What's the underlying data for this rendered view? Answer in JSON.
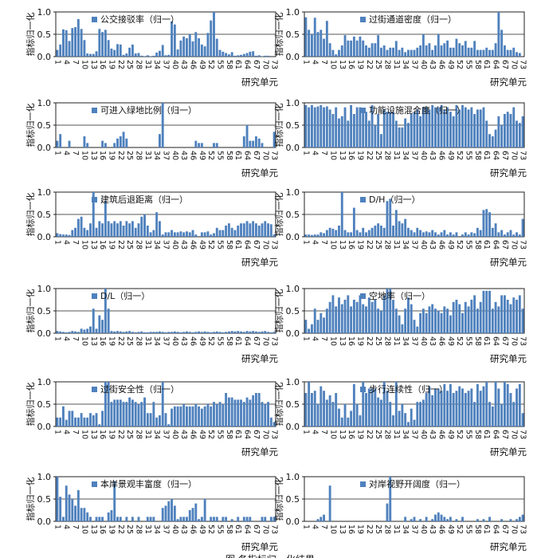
{
  "figure": {
    "caption": "图 各指标归一化结果"
  },
  "chart_data": [
    {
      "type": "bar",
      "title": "公交接驳率（归一）",
      "xlabel": "研究单元",
      "ylabel": "指标归一化",
      "ylim": [
        0,
        1
      ],
      "yticks": [
        "0.0",
        "0.5",
        "1.0"
      ],
      "xticks": [
        "1",
        "4",
        "7",
        "10",
        "13",
        "16",
        "19",
        "22",
        "25",
        "28",
        "31",
        "34",
        "37",
        "40",
        "43",
        "46",
        "49",
        "52",
        "55",
        "58",
        "61",
        "64",
        "67",
        "70",
        "73"
      ],
      "values": [
        0.15,
        0.27,
        0.61,
        0.59,
        0.35,
        0.64,
        0.66,
        0.84,
        0.62,
        0.37,
        0.07,
        0.06,
        0.06,
        0.12,
        0.62,
        0.55,
        0.6,
        0.37,
        0.18,
        0.15,
        0.28,
        0.27,
        0.04,
        0.07,
        0.2,
        0.27,
        0.07,
        0.08,
        0.02,
        0.01,
        0.03,
        0.01,
        0.02,
        0.09,
        0.13,
        0.26,
        0.03,
        0.04,
        0.79,
        0.72,
        0.16,
        0.36,
        0.45,
        0.41,
        0.5,
        0.34,
        0.55,
        0.41,
        0.27,
        0.23,
        0.53,
        0.81,
        1.0,
        0.4,
        0.15,
        0.11,
        0.08,
        0.05,
        0.1,
        0.02,
        0.03,
        0.04,
        0.06,
        0.08,
        0.11,
        0.12,
        0.02,
        0.03,
        0.01,
        0.02,
        0.02,
        0.0,
        0.0
      ]
    },
    {
      "type": "bar",
      "title": "过街通道密度（归一）",
      "xlabel": "研究单元",
      "ylabel": "指标归一化",
      "ylim": [
        0,
        1
      ],
      "yticks": [
        "0.0",
        "0.5",
        "1.0"
      ],
      "xticks": [
        "1",
        "4",
        "7",
        "10",
        "13",
        "16",
        "19",
        "22",
        "25",
        "28",
        "31",
        "34",
        "37",
        "40",
        "43",
        "46",
        "49",
        "52",
        "55",
        "58",
        "61",
        "64",
        "67",
        "70",
        "73"
      ],
      "values": [
        0.88,
        0.6,
        0.5,
        0.87,
        0.55,
        0.6,
        0.4,
        0.8,
        0.3,
        0.15,
        0.05,
        0.15,
        0.25,
        0.48,
        0.36,
        0.36,
        0.45,
        0.36,
        0.45,
        0.36,
        0.25,
        0.2,
        0.3,
        0.3,
        0.48,
        0.2,
        0.25,
        0.15,
        0.2,
        0.2,
        0.35,
        0.15,
        0.2,
        0.1,
        0.15,
        0.15,
        0.15,
        0.2,
        0.25,
        0.5,
        0.25,
        0.3,
        0.15,
        0.25,
        0.5,
        0.25,
        0.3,
        0.36,
        0.2,
        0.2,
        0.4,
        0.3,
        0.25,
        0.35,
        0.2,
        0.2,
        0.35,
        0.15,
        0.15,
        0.15,
        0.2,
        0.15,
        0.15,
        0.3,
        1.0,
        0.6,
        0.25,
        0.15,
        0.15,
        0.2,
        0.1,
        0.08,
        0.0
      ]
    },
    {
      "type": "bar",
      "title": "可进入绿地比例（归一）",
      "xlabel": "研究单元",
      "ylabel": "指标归一化",
      "ylim": [
        0,
        1
      ],
      "yticks": [
        "0.0",
        "0.5",
        "1.0"
      ],
      "xticks": [
        "1",
        "4",
        "7",
        "10",
        "13",
        "16",
        "19",
        "22",
        "25",
        "28",
        "31",
        "34",
        "37",
        "40",
        "43",
        "46",
        "49",
        "52",
        "55",
        "58",
        "61",
        "64",
        "67",
        "70",
        "73"
      ],
      "values": [
        0.15,
        0.3,
        0.0,
        0.0,
        0.15,
        0.0,
        0.0,
        0.0,
        0.0,
        0.25,
        0.1,
        0.0,
        0.0,
        0.0,
        0.0,
        0.15,
        0.1,
        0.0,
        0.0,
        0.1,
        0.2,
        0.25,
        0.35,
        0.2,
        0.0,
        0.0,
        0.0,
        0.0,
        0.0,
        0.0,
        0.0,
        0.0,
        0.0,
        0.0,
        0.3,
        1.0,
        0.0,
        0.0,
        0.0,
        0.0,
        0.0,
        0.0,
        0.0,
        0.0,
        0.0,
        0.0,
        0.15,
        0.1,
        0.1,
        0.0,
        0.0,
        0.0,
        0.1,
        0.1,
        0.0,
        0.0,
        0.0,
        0.0,
        0.0,
        0.0,
        0.0,
        0.0,
        0.25,
        0.5,
        0.15,
        0.15,
        0.25,
        0.2,
        0.1,
        0.0,
        0.0,
        0.0,
        0.35
      ]
    },
    {
      "type": "bar",
      "title": "功能设施混合度（归一）",
      "xlabel": "研究单元",
      "ylabel": "指标归一化",
      "ylim": [
        0,
        1
      ],
      "yticks": [
        "0.0",
        "0.5",
        "1.0"
      ],
      "xticks": [
        "1",
        "4",
        "7",
        "10",
        "13",
        "16",
        "19",
        "22",
        "25",
        "28",
        "31",
        "34",
        "37",
        "40",
        "43",
        "46",
        "49",
        "52",
        "55",
        "58",
        "61",
        "64",
        "67",
        "70",
        "73"
      ],
      "values": [
        0.95,
        0.9,
        0.95,
        0.9,
        0.92,
        0.95,
        0.9,
        0.92,
        0.85,
        0.75,
        0.9,
        0.65,
        0.7,
        0.9,
        0.6,
        0.95,
        0.75,
        0.9,
        0.9,
        0.85,
        0.8,
        0.6,
        0.95,
        0.5,
        0.75,
        0.3,
        0.85,
        0.8,
        0.8,
        0.8,
        0.6,
        0.45,
        0.45,
        0.65,
        0.55,
        0.75,
        0.8,
        0.85,
        0.7,
        0.9,
        0.9,
        0.85,
        0.95,
        0.9,
        0.9,
        0.95,
        0.85,
        0.9,
        0.8,
        0.7,
        0.95,
        0.85,
        0.95,
        0.9,
        0.85,
        0.9,
        0.75,
        0.85,
        0.85,
        0.9,
        0.6,
        0.3,
        0.25,
        0.4,
        0.7,
        0.5,
        0.75,
        0.8,
        0.75,
        0.9,
        0.6,
        0.55,
        0.7
      ]
    },
    {
      "type": "bar",
      "title": "建筑后退距离（归一）",
      "xlabel": "研究单元",
      "ylabel": "指标归一化",
      "ylim": [
        0,
        1
      ],
      "yticks": [
        "0.0",
        "0.5",
        "1.0"
      ],
      "xticks": [
        "1",
        "4",
        "7",
        "10",
        "13",
        "16",
        "19",
        "22",
        "25",
        "28",
        "31",
        "34",
        "37",
        "40",
        "43",
        "46",
        "49",
        "52",
        "55",
        "58",
        "61",
        "64",
        "67",
        "70",
        "73"
      ],
      "values": [
        0.08,
        0.06,
        0.05,
        0.05,
        0.04,
        0.15,
        0.2,
        0.4,
        0.45,
        0.2,
        0.15,
        0.3,
        1.0,
        0.2,
        0.35,
        0.3,
        0.8,
        0.35,
        0.3,
        0.35,
        0.3,
        0.35,
        0.25,
        0.35,
        0.3,
        0.35,
        0.2,
        0.3,
        0.45,
        0.5,
        0.25,
        0.1,
        0.15,
        0.55,
        0.35,
        0.05,
        0.1,
        0.1,
        0.15,
        0.1,
        0.1,
        0.12,
        0.1,
        0.12,
        0.1,
        0.15,
        0.05,
        0.0,
        0.1,
        0.1,
        0.12,
        0.05,
        0.08,
        0.2,
        0.15,
        0.15,
        0.25,
        0.3,
        0.2,
        0.15,
        0.25,
        0.3,
        0.3,
        0.35,
        0.3,
        0.35,
        0.3,
        0.25,
        0.3,
        0.35,
        0.3,
        0.28,
        0.05
      ]
    },
    {
      "type": "bar",
      "title": "D/H（归一）",
      "xlabel": "研究单元",
      "ylabel": "指标归一化",
      "ylim": [
        0,
        1
      ],
      "yticks": [
        "0.0",
        "0.5",
        "1.0"
      ],
      "xticks": [
        "1",
        "4",
        "7",
        "10",
        "13",
        "16",
        "19",
        "22",
        "25",
        "28",
        "31",
        "34",
        "37",
        "40",
        "43",
        "46",
        "49",
        "52",
        "55",
        "58",
        "61",
        "64",
        "67",
        "70",
        "73"
      ],
      "values": [
        0.05,
        0.05,
        0.04,
        0.05,
        0.05,
        0.1,
        0.08,
        0.15,
        0.2,
        0.18,
        0.15,
        0.25,
        1.0,
        0.15,
        0.1,
        0.1,
        0.65,
        0.15,
        0.1,
        0.2,
        0.1,
        0.15,
        0.2,
        0.25,
        0.3,
        0.25,
        0.2,
        0.8,
        0.85,
        0.25,
        0.6,
        0.35,
        0.3,
        0.4,
        0.2,
        0.15,
        0.1,
        0.2,
        0.15,
        0.1,
        0.12,
        0.1,
        0.15,
        0.1,
        0.05,
        0.1,
        0.15,
        0.05,
        0.1,
        0.05,
        0.1,
        0.0,
        0.05,
        0.1,
        0.05,
        0.1,
        0.08,
        0.2,
        0.15,
        0.6,
        0.62,
        0.55,
        0.2,
        0.3,
        0.1,
        0.15,
        0.05,
        0.1,
        0.15,
        0.05,
        0.1,
        0.05,
        0.4
      ]
    },
    {
      "type": "bar",
      "title": "D/L（归一）",
      "xlabel": "研究单元",
      "ylabel": "指标归一化",
      "ylim": [
        0,
        1
      ],
      "yticks": [
        "0.0",
        "0.5",
        "1.0"
      ],
      "xticks": [
        "1",
        "4",
        "7",
        "10",
        "13",
        "16",
        "19",
        "22",
        "25",
        "28",
        "31",
        "34",
        "37",
        "40",
        "43",
        "46",
        "49",
        "52",
        "55",
        "58",
        "61",
        "64",
        "67",
        "70",
        "73"
      ],
      "values": [
        0.05,
        0.04,
        0.03,
        0.02,
        0.03,
        0.05,
        0.04,
        0.03,
        0.1,
        0.08,
        0.1,
        0.15,
        0.55,
        0.1,
        0.4,
        0.3,
        1.0,
        0.55,
        0.05,
        0.04,
        0.05,
        0.04,
        0.03,
        0.04,
        0.05,
        0.03,
        0.02,
        0.03,
        0.04,
        0.02,
        0.02,
        0.03,
        0.03,
        0.03,
        0.04,
        0.03,
        0.02,
        0.03,
        0.03,
        0.04,
        0.03,
        0.02,
        0.03,
        0.04,
        0.03,
        0.02,
        0.03,
        0.04,
        0.03,
        0.04,
        0.03,
        0.02,
        0.03,
        0.04,
        0.03,
        0.02,
        0.03,
        0.04,
        0.05,
        0.04,
        0.05,
        0.04,
        0.03,
        0.05,
        0.04,
        0.05,
        0.04,
        0.03,
        0.04,
        0.05,
        0.03,
        0.02,
        0.03
      ]
    },
    {
      "type": "bar",
      "title": "空地率（归一）",
      "xlabel": "研究单元",
      "ylabel": "指标归一化",
      "ylim": [
        0,
        1
      ],
      "yticks": [
        "0.0",
        "0.5",
        "1.0"
      ],
      "xticks": [
        "1",
        "4",
        "7",
        "10",
        "13",
        "16",
        "19",
        "22",
        "25",
        "28",
        "31",
        "34",
        "37",
        "40",
        "43",
        "46",
        "49",
        "52",
        "55",
        "58",
        "61",
        "64",
        "67",
        "70",
        "73"
      ],
      "values": [
        0.3,
        0.1,
        0.2,
        0.55,
        0.3,
        0.45,
        0.35,
        0.55,
        0.7,
        0.85,
        0.6,
        0.8,
        0.65,
        0.75,
        0.85,
        0.6,
        0.75,
        0.7,
        0.85,
        0.65,
        0.6,
        0.8,
        0.7,
        0.75,
        0.55,
        0.5,
        0.85,
        1.0,
        1.0,
        0.75,
        0.55,
        0.4,
        0.2,
        0.55,
        0.8,
        0.65,
        0.3,
        0.15,
        0.45,
        0.55,
        0.45,
        0.6,
        0.65,
        0.55,
        0.5,
        0.45,
        0.6,
        0.55,
        0.4,
        0.7,
        0.75,
        0.65,
        0.45,
        0.7,
        0.6,
        0.75,
        0.85,
        0.55,
        0.7,
        0.95,
        0.95,
        0.95,
        0.55,
        0.7,
        0.6,
        0.85,
        0.85,
        0.75,
        0.65,
        0.8,
        0.75,
        0.85,
        0.55
      ]
    },
    {
      "type": "bar",
      "title": "过街安全性（归一）",
      "xlabel": "研究单元",
      "ylabel": "指标归一化",
      "ylim": [
        0,
        1
      ],
      "yticks": [
        "0.0",
        "0.5",
        "1.0"
      ],
      "xticks": [
        "1",
        "4",
        "7",
        "10",
        "13",
        "16",
        "19",
        "22",
        "25",
        "28",
        "31",
        "34",
        "37",
        "40",
        "43",
        "46",
        "49",
        "52",
        "55",
        "58",
        "61",
        "64",
        "67",
        "70",
        "73"
      ],
      "values": [
        0.2,
        0.2,
        0.45,
        0.15,
        0.35,
        0.35,
        0.2,
        0.2,
        0.3,
        0.2,
        0.2,
        0.3,
        0.25,
        0.3,
        0.05,
        0.35,
        1.0,
        1.0,
        0.55,
        0.6,
        0.6,
        0.6,
        0.55,
        0.55,
        0.65,
        0.6,
        0.55,
        0.5,
        0.55,
        0.65,
        0.3,
        0.3,
        0.55,
        0.2,
        0.25,
        1.0,
        0.3,
        0.05,
        0.4,
        0.45,
        0.45,
        0.45,
        0.5,
        0.45,
        0.45,
        0.45,
        0.5,
        0.45,
        0.4,
        0.45,
        0.5,
        0.45,
        0.55,
        0.5,
        0.55,
        0.5,
        0.75,
        0.65,
        0.65,
        0.6,
        0.6,
        0.6,
        0.55,
        0.65,
        0.6,
        0.7,
        0.75,
        0.75,
        0.55,
        0.5,
        0.55,
        0.2,
        0.1
      ]
    },
    {
      "type": "bar",
      "title": "步行连续性（归一）",
      "xlabel": "研究单元",
      "ylabel": "指标归一化",
      "ylim": [
        0,
        1
      ],
      "yticks": [
        "0.0",
        "0.5",
        "1.0"
      ],
      "xticks": [
        "1",
        "4",
        "7",
        "10",
        "13",
        "16",
        "19",
        "22",
        "25",
        "28",
        "31",
        "34",
        "37",
        "40",
        "43",
        "46",
        "49",
        "52",
        "55",
        "58",
        "61",
        "64",
        "67",
        "70",
        "73"
      ],
      "values": [
        0.75,
        1.0,
        0.75,
        0.8,
        0.5,
        0.9,
        0.8,
        0.6,
        0.7,
        0.55,
        0.75,
        0.4,
        0.2,
        0.5,
        0.2,
        0.35,
        0.95,
        0.5,
        0.25,
        1.0,
        0.75,
        0.85,
        0.85,
        0.85,
        0.65,
        0.6,
        1.0,
        0.8,
        0.55,
        0.25,
        1.0,
        0.35,
        0.5,
        0.3,
        0.1,
        0.4,
        0.15,
        0.55,
        0.55,
        0.6,
        0.75,
        0.9,
        0.7,
        0.85,
        0.85,
        0.8,
        0.95,
        0.8,
        0.95,
        0.75,
        0.8,
        0.9,
        0.85,
        0.75,
        0.8,
        0.85,
        0.55,
        0.95,
        0.8,
        0.9,
        1.0,
        0.55,
        0.45,
        1.0,
        0.85,
        0.5,
        1.0,
        0.95,
        0.75,
        0.55,
        0.85,
        0.95,
        0.3
      ]
    },
    {
      "type": "bar",
      "title": "本岸景观丰富度（归一）",
      "xlabel": "研究单元",
      "ylabel": "指标归一化",
      "ylim": [
        0,
        1
      ],
      "yticks": [
        "0.0",
        "0.5",
        "1.0"
      ],
      "xticks": [
        "1",
        "4",
        "7",
        "10",
        "13",
        "16",
        "19",
        "22",
        "25",
        "28",
        "31",
        "34",
        "37",
        "40",
        "43",
        "46",
        "49",
        "52",
        "55",
        "58",
        "61",
        "64",
        "67",
        "70",
        "73"
      ],
      "values": [
        1.0,
        0.55,
        0.1,
        0.8,
        0.6,
        0.5,
        0.35,
        0.7,
        0.3,
        0.3,
        0.2,
        0.1,
        0.0,
        0.1,
        0.1,
        0.1,
        0.0,
        0.2,
        0.25,
        0.9,
        0.1,
        0.1,
        0.0,
        0.1,
        0.0,
        0.1,
        0.0,
        0.1,
        0.0,
        0.0,
        0.1,
        0.1,
        0.1,
        0.0,
        0.0,
        0.3,
        0.35,
        0.45,
        0.5,
        0.35,
        0.05,
        0.1,
        0.1,
        0.1,
        0.25,
        0.3,
        0.4,
        0.05,
        0.1,
        0.5,
        0.0,
        0.1,
        0.1,
        0.1,
        0.0,
        0.1,
        0.1,
        0.0,
        0.05,
        0.0,
        0.1,
        0.0,
        0.1,
        0.1,
        0.1,
        0.0,
        0.0,
        0.0,
        0.1,
        0.1,
        0.0,
        0.1,
        0.1
      ]
    },
    {
      "type": "bar",
      "title": "对岸视野开阔度（归一）",
      "xlabel": "研究单元",
      "ylabel": "指标归一化",
      "ylim": [
        0,
        1
      ],
      "yticks": [
        "0.0",
        "0.5",
        "1.0"
      ],
      "xticks": [
        "1",
        "4",
        "7",
        "10",
        "13",
        "16",
        "19",
        "22",
        "25",
        "28",
        "31",
        "34",
        "37",
        "40",
        "43",
        "46",
        "49",
        "52",
        "55",
        "58",
        "61",
        "64",
        "67",
        "70",
        "73"
      ],
      "values": [
        0.0,
        0.0,
        0.0,
        0.0,
        0.05,
        0.1,
        0.15,
        0.0,
        0.8,
        0.0,
        0.0,
        0.0,
        0.0,
        0.0,
        0.0,
        0.0,
        0.0,
        0.0,
        0.0,
        0.0,
        0.0,
        0.0,
        0.0,
        0.0,
        0.0,
        0.0,
        0.0,
        0.4,
        1.0,
        0.0,
        0.0,
        0.0,
        0.0,
        0.1,
        0.0,
        0.05,
        0.1,
        0.0,
        0.05,
        0.0,
        0.1,
        0.0,
        0.05,
        0.15,
        0.2,
        0.15,
        0.1,
        0.05,
        0.1,
        0.0,
        0.05,
        0.0,
        0.1,
        0.0,
        0.0,
        0.0,
        0.0,
        0.05,
        0.0,
        0.05,
        0.0,
        0.1,
        0.0,
        0.0,
        0.0,
        0.05,
        0.0,
        0.0,
        0.05,
        0.0,
        0.05,
        0.1,
        0.15
      ]
    }
  ]
}
